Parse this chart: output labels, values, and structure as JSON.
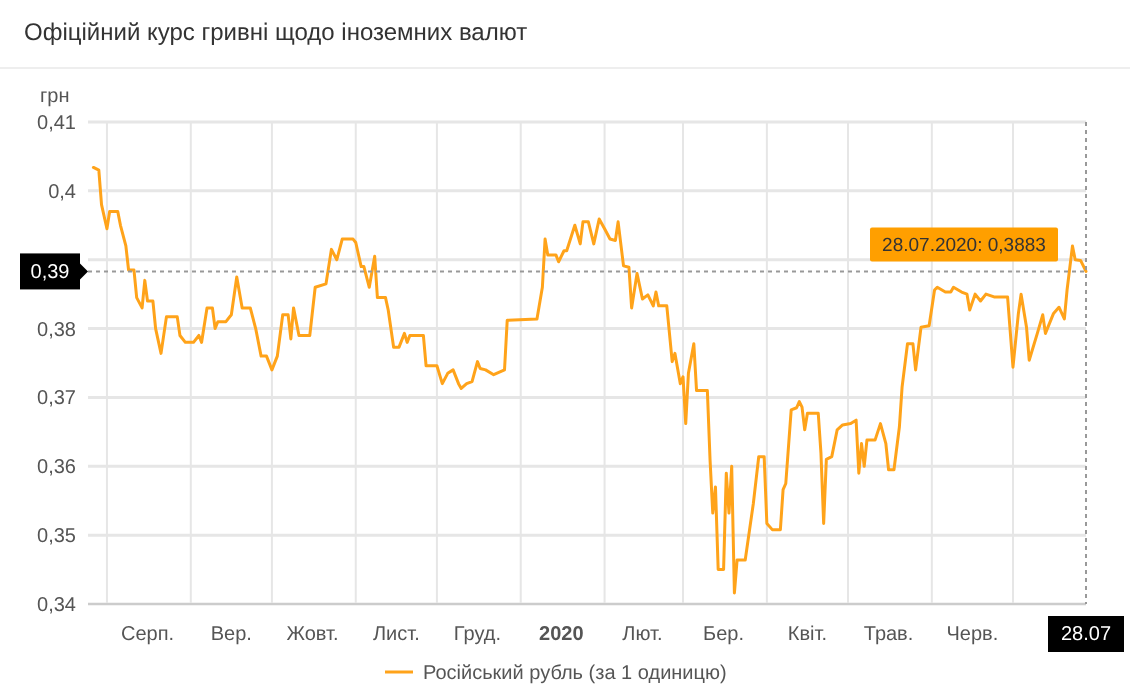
{
  "chart_data": {
    "type": "line",
    "title": "Офіційний курс гривні щодо іноземних валют",
    "ylabel": "грн",
    "xlim": [
      "2019-07-25",
      "2020-07-28"
    ],
    "ylim": [
      0.34,
      0.41
    ],
    "yticks": [
      {
        "value": 0.34,
        "label": "0,34"
      },
      {
        "value": 0.35,
        "label": "0,35"
      },
      {
        "value": 0.36,
        "label": "0,36"
      },
      {
        "value": 0.37,
        "label": "0,37"
      },
      {
        "value": 0.38,
        "label": "0,38"
      },
      {
        "value": 0.39,
        "label": null
      },
      {
        "value": 0.4,
        "label": "0,4"
      },
      {
        "value": 0.41,
        "label": "0,41"
      }
    ],
    "xticks": [
      {
        "value": "2019-08-01",
        "label": null
      },
      {
        "value": "2019-08-16",
        "label": "Серп."
      },
      {
        "value": "2019-09-01",
        "label": null
      },
      {
        "value": "2019-09-16",
        "label": "Вер."
      },
      {
        "value": "2019-10-01",
        "label": null
      },
      {
        "value": "2019-10-16",
        "label": "Жовт."
      },
      {
        "value": "2019-11-01",
        "label": null
      },
      {
        "value": "2019-11-16",
        "label": "Лист."
      },
      {
        "value": "2019-12-01",
        "label": null
      },
      {
        "value": "2019-12-16",
        "label": "Груд."
      },
      {
        "value": "2020-01-01",
        "label": null
      },
      {
        "value": "2020-01-16",
        "label": "2020"
      },
      {
        "value": "2020-02-01",
        "label": null
      },
      {
        "value": "2020-02-15",
        "label": "Лют."
      },
      {
        "value": "2020-03-01",
        "label": null
      },
      {
        "value": "2020-03-16",
        "label": "Бер."
      },
      {
        "value": "2020-04-01",
        "label": null
      },
      {
        "value": "2020-04-16",
        "label": "Квіт."
      },
      {
        "value": "2020-05-01",
        "label": null
      },
      {
        "value": "2020-05-16",
        "label": "Трав."
      },
      {
        "value": "2020-06-01",
        "label": null
      },
      {
        "value": "2020-06-16",
        "label": "Черв."
      },
      {
        "value": "2020-07-01",
        "label": null
      },
      {
        "value": "2020-07-28",
        "label": "28.07"
      }
    ],
    "grid": true,
    "legend": "bottom",
    "marker": "none",
    "line_style": "solid",
    "ref_lines": [
      {
        "axis": "y",
        "value": 0.3883,
        "label": "0,39",
        "line_style": "dotted",
        "color": "#999999"
      },
      {
        "axis": "x",
        "value": "2020-07-28",
        "line_style": "dotted",
        "color": "#999999"
      }
    ],
    "annotations": [
      {
        "text": "28.07.2020: 0,3883",
        "x": "2020-07-28",
        "y": 0.3883
      }
    ],
    "series": [
      {
        "name": "Російський рубль (за 1 одиницю)",
        "color": "#ffa31a",
        "x": [
          "2019-07-27",
          "2019-07-29",
          "2019-07-30",
          "2019-08-01",
          "2019-08-02",
          "2019-08-05",
          "2019-08-06",
          "2019-08-08",
          "2019-08-09",
          "2019-08-11",
          "2019-08-12",
          "2019-08-14",
          "2019-08-15",
          "2019-08-16",
          "2019-08-18",
          "2019-08-19",
          "2019-08-21",
          "2019-08-23",
          "2019-08-27",
          "2019-08-28",
          "2019-08-30",
          "2019-09-02",
          "2019-09-04",
          "2019-09-05",
          "2019-09-07",
          "2019-09-09",
          "2019-09-10",
          "2019-09-11",
          "2019-09-14",
          "2019-09-16",
          "2019-09-18",
          "2019-09-20",
          "2019-09-23",
          "2019-09-25",
          "2019-09-27",
          "2019-09-29",
          "2019-10-01",
          "2019-10-03",
          "2019-10-05",
          "2019-10-07",
          "2019-10-08",
          "2019-10-09",
          "2019-10-11",
          "2019-10-15",
          "2019-10-17",
          "2019-10-21",
          "2019-10-23",
          "2019-10-25",
          "2019-10-27",
          "2019-10-31",
          "2019-11-01",
          "2019-11-03",
          "2019-11-04",
          "2019-11-06",
          "2019-11-08",
          "2019-11-09",
          "2019-11-12",
          "2019-11-13",
          "2019-11-15",
          "2019-11-17",
          "2019-11-19",
          "2019-11-20",
          "2019-11-21",
          "2019-11-24",
          "2019-11-26",
          "2019-11-27",
          "2019-12-01",
          "2019-12-03",
          "2019-12-05",
          "2019-12-07",
          "2019-12-09",
          "2019-12-10",
          "2019-12-12",
          "2019-12-14",
          "2019-12-16",
          "2019-12-17",
          "2019-12-19",
          "2019-12-22",
          "2019-12-26",
          "2019-12-27",
          "2020-01-07",
          "2020-01-09",
          "2020-01-10",
          "2020-01-11",
          "2020-01-14",
          "2020-01-15",
          "2020-01-17",
          "2020-01-18",
          "2020-01-21",
          "2020-01-23",
          "2020-01-24",
          "2020-01-26",
          "2020-01-28",
          "2020-01-30",
          "2020-02-01",
          "2020-02-03",
          "2020-02-05",
          "2020-02-06",
          "2020-02-08",
          "2020-02-10",
          "2020-02-11",
          "2020-02-13",
          "2020-02-15",
          "2020-02-17",
          "2020-02-19",
          "2020-02-20",
          "2020-02-21",
          "2020-02-24",
          "2020-02-26",
          "2020-02-27",
          "2020-02-29",
          "2020-03-01",
          "2020-03-02",
          "2020-03-03",
          "2020-03-05",
          "2020-03-06",
          "2020-03-10",
          "2020-03-11",
          "2020-03-12",
          "2020-03-13",
          "2020-03-14",
          "2020-03-16",
          "2020-03-17",
          "2020-03-18",
          "2020-03-19",
          "2020-03-20",
          "2020-03-21",
          "2020-03-24",
          "2020-03-27",
          "2020-03-29",
          "2020-03-31",
          "2020-04-01",
          "2020-04-03",
          "2020-04-06",
          "2020-04-07",
          "2020-04-08",
          "2020-04-10",
          "2020-04-12",
          "2020-04-13",
          "2020-04-14",
          "2020-04-15",
          "2020-04-16",
          "2020-04-20",
          "2020-04-21",
          "2020-04-22",
          "2020-04-23",
          "2020-04-25",
          "2020-04-27",
          "2020-04-29",
          "2020-05-02",
          "2020-05-04",
          "2020-05-05",
          "2020-05-06",
          "2020-05-07",
          "2020-05-08",
          "2020-05-11",
          "2020-05-13",
          "2020-05-15",
          "2020-05-16",
          "2020-05-18",
          "2020-05-20",
          "2020-05-21",
          "2020-05-23",
          "2020-05-25",
          "2020-05-26",
          "2020-05-28",
          "2020-05-31",
          "2020-06-02",
          "2020-06-03",
          "2020-06-06",
          "2020-06-08",
          "2020-06-09",
          "2020-06-12",
          "2020-06-14",
          "2020-06-15",
          "2020-06-17",
          "2020-06-19",
          "2020-06-21",
          "2020-06-24",
          "2020-06-27",
          "2020-06-29",
          "2020-07-01",
          "2020-07-03",
          "2020-07-04",
          "2020-07-06",
          "2020-07-07",
          "2020-07-10",
          "2020-07-12",
          "2020-07-13",
          "2020-07-16",
          "2020-07-18",
          "2020-07-20",
          "2020-07-21",
          "2020-07-23",
          "2020-07-24",
          "2020-07-26",
          "2020-07-28"
        ],
        "values": [
          0.4034,
          0.403,
          0.398,
          0.3945,
          0.397,
          0.397,
          0.395,
          0.392,
          0.3885,
          0.3885,
          0.3845,
          0.383,
          0.387,
          0.384,
          0.384,
          0.38,
          0.3764,
          0.3817,
          0.3817,
          0.379,
          0.378,
          0.378,
          0.379,
          0.378,
          0.383,
          0.383,
          0.38,
          0.381,
          0.381,
          0.382,
          0.3875,
          0.383,
          0.383,
          0.38,
          0.376,
          0.376,
          0.374,
          0.376,
          0.382,
          0.382,
          0.3785,
          0.383,
          0.379,
          0.379,
          0.386,
          0.3865,
          0.3915,
          0.39,
          0.393,
          0.393,
          0.3925,
          0.389,
          0.389,
          0.386,
          0.3905,
          0.3845,
          0.3845,
          0.3827,
          0.3773,
          0.3773,
          0.3793,
          0.378,
          0.379,
          0.379,
          0.379,
          0.3746,
          0.3746,
          0.372,
          0.3735,
          0.374,
          0.372,
          0.3713,
          0.372,
          0.3723,
          0.3752,
          0.3742,
          0.374,
          0.3733,
          0.374,
          0.3812,
          0.3814,
          0.386,
          0.393,
          0.3907,
          0.3907,
          0.3897,
          0.3913,
          0.3913,
          0.395,
          0.3923,
          0.3955,
          0.3955,
          0.3923,
          0.3959,
          0.3945,
          0.393,
          0.3928,
          0.3955,
          0.3891,
          0.3889,
          0.383,
          0.388,
          0.3843,
          0.3849,
          0.3833,
          0.3853,
          0.3833,
          0.3833,
          0.3752,
          0.3764,
          0.372,
          0.373,
          0.3662,
          0.3735,
          0.3778,
          0.371,
          0.371,
          0.3609,
          0.3532,
          0.357,
          0.345,
          0.345,
          0.359,
          0.3532,
          0.36,
          0.3416,
          0.3464,
          0.3464,
          0.3546,
          0.3614,
          0.3614,
          0.3517,
          0.3508,
          0.3508,
          0.3566,
          0.3575,
          0.3682,
          0.3685,
          0.3694,
          0.3686,
          0.3653,
          0.3677,
          0.3677,
          0.3619,
          0.3517,
          0.361,
          0.3614,
          0.3653,
          0.366,
          0.3662,
          0.3667,
          0.359,
          0.3633,
          0.36,
          0.3638,
          0.3638,
          0.3662,
          0.3633,
          0.3595,
          0.3595,
          0.3657,
          0.3715,
          0.3778,
          0.3778,
          0.374,
          0.3802,
          0.3804,
          0.3856,
          0.386,
          0.3853,
          0.3853,
          0.386,
          0.3853,
          0.385,
          0.3827,
          0.385,
          0.384,
          0.385,
          0.3846,
          0.3846,
          0.3846,
          0.3744,
          0.3822,
          0.385,
          0.3802,
          0.3754,
          0.3793,
          0.382,
          0.3793,
          0.3822,
          0.3831,
          0.3814,
          0.3856,
          0.392,
          0.39,
          0.3899,
          0.3883
        ]
      }
    ]
  }
}
